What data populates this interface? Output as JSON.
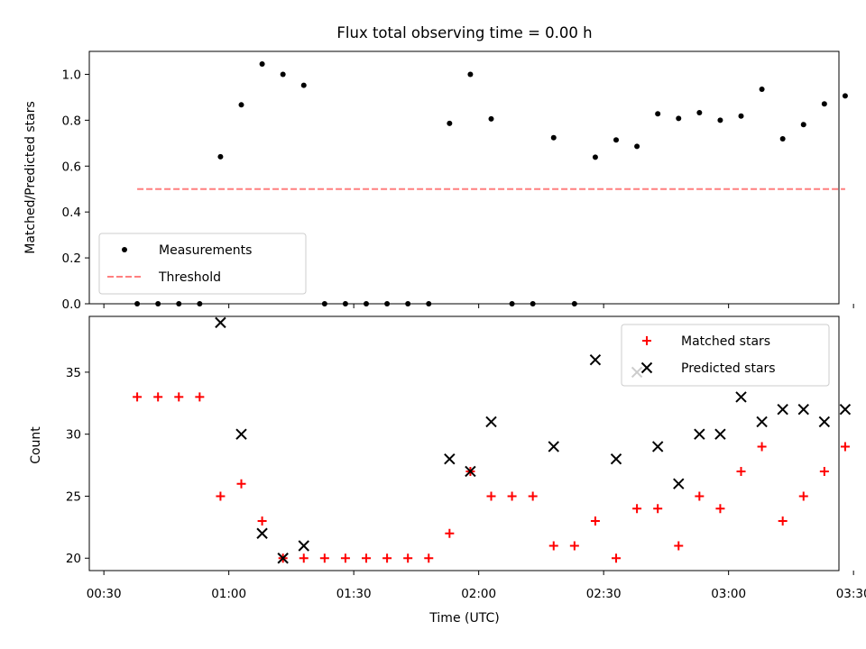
{
  "chart_data": {
    "title": "Flux total observing time = 0.00 h",
    "xlabel": "Time (UTC)",
    "x_ticks": [
      "00:30",
      "01:00",
      "01:30",
      "02:00",
      "02:30",
      "03:00",
      "03:30"
    ],
    "panels": [
      {
        "type": "scatter",
        "ylabel": "Matched/Predicted stars",
        "ylim": [
          0,
          1.1
        ],
        "y_ticks": [
          "0.0",
          "0.2",
          "0.4",
          "0.6",
          "0.8",
          "1.0"
        ],
        "legend_position": "lower-left",
        "series": [
          {
            "name": "Measurements",
            "marker": "dot",
            "color": "#000000",
            "points": [
              [
                "00:38",
                0.0
              ],
              [
                "00:43",
                0.0
              ],
              [
                "00:48",
                0.0
              ],
              [
                "00:53",
                0.0
              ],
              [
                "00:58",
                0.641
              ],
              [
                "01:03",
                0.867
              ],
              [
                "01:08",
                1.045
              ],
              [
                "01:13",
                1.0
              ],
              [
                "01:18",
                0.952
              ],
              [
                "01:23",
                0.0
              ],
              [
                "01:28",
                0.0
              ],
              [
                "01:33",
                0.0
              ],
              [
                "01:38",
                0.0
              ],
              [
                "01:43",
                0.0
              ],
              [
                "01:48",
                0.0
              ],
              [
                "01:53",
                0.786
              ],
              [
                "01:58",
                1.0
              ],
              [
                "02:03",
                0.806
              ],
              [
                "02:08",
                0.0
              ],
              [
                "02:13",
                0.0
              ],
              [
                "02:18",
                0.724
              ],
              [
                "02:23",
                0.0
              ],
              [
                "02:28",
                0.639
              ],
              [
                "02:33",
                0.714
              ],
              [
                "02:38",
                0.686
              ],
              [
                "02:43",
                0.828
              ],
              [
                "02:48",
                0.808
              ],
              [
                "02:53",
                0.833
              ],
              [
                "02:58",
                0.8
              ],
              [
                "03:03",
                0.818
              ],
              [
                "03:08",
                0.935
              ],
              [
                "03:13",
                0.719
              ],
              [
                "03:18",
                0.781
              ],
              [
                "03:23",
                0.871
              ],
              [
                "03:28",
                0.906
              ]
            ]
          },
          {
            "name": "Threshold",
            "marker": "dashed-line",
            "color": "#ff7f7f",
            "points": [
              [
                "00:38",
                0.5
              ],
              [
                "03:28",
                0.5
              ]
            ]
          }
        ]
      },
      {
        "type": "scatter",
        "ylabel": "Count",
        "ylim": [
          19,
          39.5
        ],
        "y_ticks": [
          "20",
          "25",
          "30",
          "35"
        ],
        "legend_position": "upper-right",
        "series": [
          {
            "name": "Matched stars",
            "marker": "plus",
            "color": "#ff0000",
            "points": [
              [
                "00:38",
                33
              ],
              [
                "00:43",
                33
              ],
              [
                "00:48",
                33
              ],
              [
                "00:53",
                33
              ],
              [
                "00:58",
                25
              ],
              [
                "01:03",
                26
              ],
              [
                "01:08",
                23
              ],
              [
                "01:13",
                20
              ],
              [
                "01:18",
                20
              ],
              [
                "01:23",
                20
              ],
              [
                "01:28",
                20
              ],
              [
                "01:33",
                20
              ],
              [
                "01:38",
                20
              ],
              [
                "01:43",
                20
              ],
              [
                "01:48",
                20
              ],
              [
                "01:53",
                22
              ],
              [
                "01:58",
                27
              ],
              [
                "02:03",
                25
              ],
              [
                "02:08",
                25
              ],
              [
                "02:13",
                25
              ],
              [
                "02:18",
                21
              ],
              [
                "02:23",
                21
              ],
              [
                "02:28",
                23
              ],
              [
                "02:33",
                20
              ],
              [
                "02:38",
                24
              ],
              [
                "02:43",
                24
              ],
              [
                "02:48",
                21
              ],
              [
                "02:53",
                25
              ],
              [
                "02:58",
                24
              ],
              [
                "03:03",
                27
              ],
              [
                "03:08",
                29
              ],
              [
                "03:13",
                23
              ],
              [
                "03:18",
                25
              ],
              [
                "03:23",
                27
              ],
              [
                "03:28",
                29
              ]
            ]
          },
          {
            "name": "Predicted stars",
            "marker": "x",
            "color": "#000000",
            "points": [
              [
                "00:58",
                39
              ],
              [
                "01:03",
                30
              ],
              [
                "01:08",
                22
              ],
              [
                "01:13",
                20
              ],
              [
                "01:18",
                21
              ],
              [
                "01:53",
                28
              ],
              [
                "01:58",
                27
              ],
              [
                "02:03",
                31
              ],
              [
                "02:18",
                29
              ],
              [
                "02:28",
                36
              ],
              [
                "02:33",
                28
              ],
              [
                "02:38",
                35
              ],
              [
                "02:43",
                29
              ],
              [
                "02:48",
                26
              ],
              [
                "02:53",
                30
              ],
              [
                "02:58",
                30
              ],
              [
                "03:03",
                33
              ],
              [
                "03:08",
                31
              ],
              [
                "03:13",
                32
              ],
              [
                "03:18",
                32
              ],
              [
                "03:23",
                31
              ],
              [
                "03:28",
                32
              ]
            ]
          }
        ]
      }
    ]
  }
}
